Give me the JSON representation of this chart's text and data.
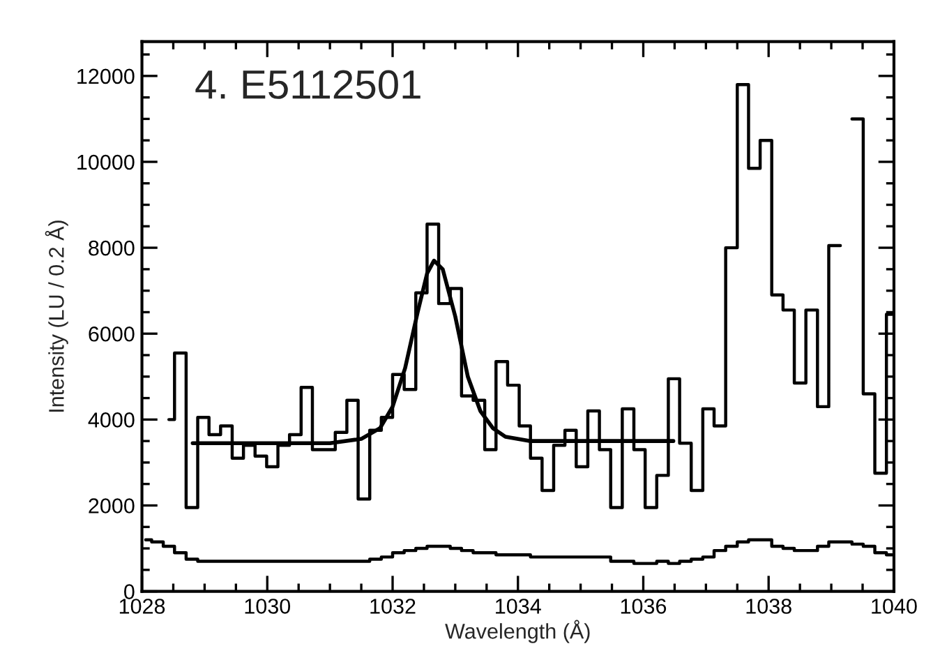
{
  "chart_data": {
    "type": "step",
    "title": "4. E5112501",
    "xlabel": "Wavelength (Å)",
    "ylabel": "Intensity (LU / 0.2 Å)",
    "xlim": [
      1028,
      1040
    ],
    "ylim": [
      0,
      12800
    ],
    "xticks": [
      1028,
      1030,
      1032,
      1034,
      1036,
      1038,
      1040
    ],
    "yticks": [
      0,
      2000,
      4000,
      6000,
      8000,
      10000,
      12000
    ],
    "grid": false,
    "legend": false,
    "series": [
      {
        "color": "#000000",
        "x": [
          1028.43,
          1028.61,
          1028.8,
          1028.98,
          1029.16,
          1029.35,
          1029.53,
          1029.71,
          1029.9,
          1030.08,
          1030.26,
          1030.45,
          1030.63,
          1030.81,
          1030.99,
          1031.18,
          1031.36,
          1031.54,
          1031.73,
          1031.91,
          1032.09,
          1032.28,
          1032.46,
          1032.64,
          1032.83,
          1033.01,
          1033.19,
          1033.38,
          1033.56,
          1033.74,
          1033.93,
          1034.11,
          1034.29,
          1034.48,
          1034.66,
          1034.84,
          1035.02,
          1035.21,
          1035.39,
          1035.57,
          1035.76,
          1035.94,
          1036.12,
          1036.31,
          1036.49,
          1036.67,
          1036.86,
          1037.04,
          1037.22,
          1037.41,
          1037.59,
          1037.77,
          1037.96,
          1038.14,
          1038.32,
          1038.5,
          1038.69,
          1038.87,
          1039.05,
          1039.24,
          1039.42,
          1039.6,
          1039.79,
          1039.97
        ],
        "values": [
          4000,
          5550,
          1950,
          4050,
          3650,
          3850,
          3100,
          3400,
          3150,
          2900,
          3400,
          3650,
          4750,
          3300,
          3300,
          3700,
          4450,
          2150,
          3750,
          4050,
          5050,
          4700,
          6950,
          8550,
          6700,
          7050,
          4550,
          4450,
          3300,
          5350,
          4800,
          3850,
          3100,
          2350,
          3400,
          3750,
          2900,
          4200,
          3300,
          1950,
          4250,
          3300,
          1950,
          2700,
          4950,
          3450,
          2350,
          4250,
          3850,
          8000,
          11800,
          9850,
          10500,
          6900,
          6550,
          4850,
          6550,
          4300,
          8050,
          null,
          11000,
          4600,
          2750,
          6450
        ]
      },
      {
        "color": "#000000",
        "x": [
          1028.06,
          1028.25,
          1028.43,
          1028.61,
          1028.8,
          1028.98,
          1029.16,
          1029.35,
          1029.53,
          1029.71,
          1029.9,
          1030.08,
          1030.26,
          1030.45,
          1030.63,
          1030.81,
          1030.99,
          1031.18,
          1031.36,
          1031.54,
          1031.73,
          1031.91,
          1032.09,
          1032.28,
          1032.46,
          1032.64,
          1032.83,
          1033.01,
          1033.19,
          1033.38,
          1033.56,
          1033.74,
          1033.93,
          1034.11,
          1034.29,
          1034.48,
          1034.66,
          1034.84,
          1035.02,
          1035.21,
          1035.39,
          1035.57,
          1035.76,
          1035.94,
          1036.12,
          1036.31,
          1036.49,
          1036.67,
          1036.86,
          1037.04,
          1037.22,
          1037.41,
          1037.59,
          1037.77,
          1037.96,
          1038.14,
          1038.32,
          1038.5,
          1038.69,
          1038.87,
          1039.05,
          1039.24,
          1039.42,
          1039.6,
          1039.79,
          1039.97
        ],
        "values": [
          1200,
          1150,
          1050,
          900,
          750,
          700,
          700,
          700,
          700,
          700,
          700,
          700,
          700,
          700,
          700,
          700,
          700,
          700,
          700,
          700,
          750,
          800,
          900,
          950,
          1000,
          1050,
          1050,
          1000,
          950,
          900,
          900,
          850,
          850,
          850,
          800,
          800,
          800,
          800,
          800,
          800,
          800,
          700,
          700,
          650,
          650,
          700,
          650,
          700,
          750,
          800,
          950,
          1050,
          1150,
          1200,
          1200,
          1050,
          1000,
          950,
          950,
          1050,
          1150,
          1150,
          1100,
          1050,
          900,
          850
        ]
      },
      {
        "type": "line",
        "color": "#000000",
        "x": [
          1028.81,
          1031.0,
          1031.5,
          1031.8,
          1032.0,
          1032.2,
          1032.4,
          1032.55,
          1032.66,
          1032.8,
          1033.0,
          1033.2,
          1033.4,
          1033.6,
          1033.8,
          1034.2,
          1036.48
        ],
        "values": [
          3450,
          3450,
          3550,
          3800,
          4300,
          5200,
          6500,
          7400,
          7700,
          7500,
          6400,
          5000,
          4200,
          3800,
          3600,
          3500,
          3500
        ]
      }
    ]
  }
}
